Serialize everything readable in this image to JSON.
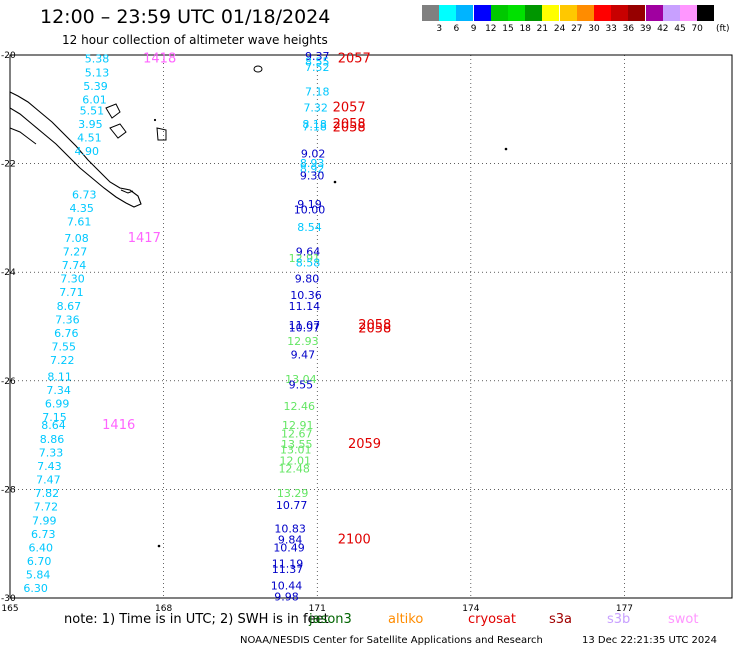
{
  "title": "12:00 – 23:59 UTC 01/18/2024",
  "subtitle": "12 hour collection of altimeter wave heights",
  "colorbar": {
    "colors": [
      "#808080",
      "#00ffff",
      "#00b4ff",
      "#0000ff",
      "#00c800",
      "#00e100",
      "#009600",
      "#ffff00",
      "#ffc800",
      "#ff8c00",
      "#ff0000",
      "#c80000",
      "#960000",
      "#a000a0",
      "#c8a0ff",
      "#ff96ff",
      "#000000"
    ],
    "labels": [
      "3",
      "6",
      "9",
      "12",
      "15",
      "18",
      "21",
      "24",
      "27",
      "30",
      "33",
      "36",
      "39",
      "42",
      "45",
      "70"
    ],
    "unit": "(ft)"
  },
  "axes": {
    "lat_labels": [
      "-20",
      "-22",
      "-24",
      "-26",
      "-28",
      "-30"
    ],
    "lon_labels": [
      "165",
      "168",
      "171",
      "174",
      "177"
    ]
  },
  "annotations": {
    "west_track": [
      {
        "text": "5.38",
        "lat": -20.05,
        "lon": 166.7,
        "color": "#00c8ff"
      },
      {
        "text": "5.13",
        "lat": -20.3,
        "lon": 166.7,
        "color": "#00c8ff"
      },
      {
        "text": "5.39",
        "lat": -20.55,
        "lon": 166.67,
        "color": "#00c8ff"
      },
      {
        "text": "6.01",
        "lat": -20.8,
        "lon": 166.65,
        "color": "#00c8ff"
      },
      {
        "text": "5.51",
        "lat": -21.0,
        "lon": 166.6,
        "color": "#00c8ff"
      },
      {
        "text": "3.95",
        "lat": -21.25,
        "lon": 166.57,
        "color": "#00c8ff"
      },
      {
        "text": "4.51",
        "lat": -21.5,
        "lon": 166.55,
        "color": "#00c8ff"
      },
      {
        "text": "4.90",
        "lat": -21.75,
        "lon": 166.5,
        "color": "#00c8ff"
      },
      {
        "text": "6.73",
        "lat": -22.55,
        "lon": 166.45,
        "color": "#00c8ff"
      },
      {
        "text": "4.35",
        "lat": -22.8,
        "lon": 166.4,
        "color": "#00c8ff"
      },
      {
        "text": "7.61",
        "lat": -23.05,
        "lon": 166.35,
        "color": "#00c8ff"
      },
      {
        "text": "7.08",
        "lat": -23.35,
        "lon": 166.3,
        "color": "#00c8ff"
      },
      {
        "text": "7.27",
        "lat": -23.6,
        "lon": 166.27,
        "color": "#00c8ff"
      },
      {
        "text": "7.74",
        "lat": -23.85,
        "lon": 166.25,
        "color": "#00c8ff"
      },
      {
        "text": "7.30",
        "lat": -24.1,
        "lon": 166.22,
        "color": "#00c8ff"
      },
      {
        "text": "7.71",
        "lat": -24.35,
        "lon": 166.2,
        "color": "#00c8ff"
      },
      {
        "text": "8.67",
        "lat": -24.6,
        "lon": 166.15,
        "color": "#00c8ff"
      },
      {
        "text": "7.36",
        "lat": -24.85,
        "lon": 166.12,
        "color": "#00c8ff"
      },
      {
        "text": "6.76",
        "lat": -25.1,
        "lon": 166.1,
        "color": "#00c8ff"
      },
      {
        "text": "7.55",
        "lat": -25.35,
        "lon": 166.05,
        "color": "#00c8ff"
      },
      {
        "text": "7.22",
        "lat": -25.6,
        "lon": 166.02,
        "color": "#00c8ff"
      },
      {
        "text": "8.11",
        "lat": -25.9,
        "lon": 165.97,
        "color": "#00c8ff"
      },
      {
        "text": "7.34",
        "lat": -26.15,
        "lon": 165.95,
        "color": "#00c8ff"
      },
      {
        "text": "6.99",
        "lat": -26.4,
        "lon": 165.92,
        "color": "#00c8ff"
      },
      {
        "text": "7.15",
        "lat": -26.65,
        "lon": 165.87,
        "color": "#00c8ff"
      },
      {
        "text": "8.64",
        "lat": -26.8,
        "lon": 165.85,
        "color": "#00c8ff"
      },
      {
        "text": "8.86",
        "lat": -27.05,
        "lon": 165.82,
        "color": "#00c8ff"
      },
      {
        "text": "7.33",
        "lat": -27.3,
        "lon": 165.8,
        "color": "#00c8ff"
      },
      {
        "text": "7.43",
        "lat": -27.55,
        "lon": 165.77,
        "color": "#00c8ff"
      },
      {
        "text": "7.47",
        "lat": -27.8,
        "lon": 165.75,
        "color": "#00c8ff"
      },
      {
        "text": "7.82",
        "lat": -28.05,
        "lon": 165.72,
        "color": "#00c8ff"
      },
      {
        "text": "7.72",
        "lat": -28.3,
        "lon": 165.7,
        "color": "#00c8ff"
      },
      {
        "text": "7.99",
        "lat": -28.55,
        "lon": 165.67,
        "color": "#00c8ff"
      },
      {
        "text": "6.73",
        "lat": -28.8,
        "lon": 165.65,
        "color": "#00c8ff"
      },
      {
        "text": "6.40",
        "lat": -29.05,
        "lon": 165.6,
        "color": "#00c8ff"
      },
      {
        "text": "6.70",
        "lat": -29.3,
        "lon": 165.57,
        "color": "#00c8ff"
      },
      {
        "text": "5.84",
        "lat": -29.55,
        "lon": 165.55,
        "color": "#00c8ff"
      },
      {
        "text": "6.30",
        "lat": -29.8,
        "lon": 165.5,
        "color": "#00c8ff"
      }
    ],
    "east_track": [
      {
        "text": "9.37",
        "lat": -20.0,
        "lon": 171.0,
        "color": "#0000c8"
      },
      {
        "text": "8.55",
        "lat": -20.1,
        "lon": 171.0,
        "color": "#00c8ff"
      },
      {
        "text": "7.52",
        "lat": -20.2,
        "lon": 171.0,
        "color": "#00c8ff"
      },
      {
        "text": "7.18",
        "lat": -20.65,
        "lon": 171.0,
        "color": "#00c8ff"
      },
      {
        "text": "7.32",
        "lat": -20.95,
        "lon": 170.97,
        "color": "#00c8ff"
      },
      {
        "text": "8.18",
        "lat": -21.25,
        "lon": 170.95,
        "color": "#00c8ff"
      },
      {
        "text": "7.18",
        "lat": -21.3,
        "lon": 170.95,
        "color": "#00c8ff"
      },
      {
        "text": "9.02",
        "lat": -21.8,
        "lon": 170.92,
        "color": "#0000c8"
      },
      {
        "text": "8.93",
        "lat": -21.97,
        "lon": 170.9,
        "color": "#00c8ff"
      },
      {
        "text": "8.92",
        "lat": -22.07,
        "lon": 170.9,
        "color": "#00c8ff"
      },
      {
        "text": "9.30",
        "lat": -22.2,
        "lon": 170.9,
        "color": "#0000c8"
      },
      {
        "text": "9.19",
        "lat": -22.73,
        "lon": 170.85,
        "color": "#0000c8"
      },
      {
        "text": "10.00",
        "lat": -22.83,
        "lon": 170.85,
        "color": "#0000c8"
      },
      {
        "text": "8.54",
        "lat": -23.15,
        "lon": 170.85,
        "color": "#00c8ff"
      },
      {
        "text": "9.64",
        "lat": -23.6,
        "lon": 170.82,
        "color": "#0000c8"
      },
      {
        "text": "12.91",
        "lat": -23.72,
        "lon": 170.75,
        "color": "#64e664"
      },
      {
        "text": "8.58",
        "lat": -23.8,
        "lon": 170.82,
        "color": "#00c8ff"
      },
      {
        "text": "9.80",
        "lat": -24.1,
        "lon": 170.8,
        "color": "#0000c8"
      },
      {
        "text": "10.36",
        "lat": -24.4,
        "lon": 170.78,
        "color": "#0000c8"
      },
      {
        "text": "11.14",
        "lat": -24.6,
        "lon": 170.75,
        "color": "#0000c8"
      },
      {
        "text": "11.07",
        "lat": -24.95,
        "lon": 170.75,
        "color": "#0000c8"
      },
      {
        "text": "10.97",
        "lat": -25.0,
        "lon": 170.75,
        "color": "#0000c8"
      },
      {
        "text": "12.93",
        "lat": -25.25,
        "lon": 170.72,
        "color": "#64e664"
      },
      {
        "text": "9.47",
        "lat": -25.5,
        "lon": 170.72,
        "color": "#0000c8"
      },
      {
        "text": "13.04",
        "lat": -25.95,
        "lon": 170.68,
        "color": "#64e664"
      },
      {
        "text": "9.55",
        "lat": -26.05,
        "lon": 170.68,
        "color": "#0000c8"
      },
      {
        "text": "12.46",
        "lat": -26.45,
        "lon": 170.65,
        "color": "#64e664"
      },
      {
        "text": "12.91",
        "lat": -26.8,
        "lon": 170.62,
        "color": "#64e664"
      },
      {
        "text": "12.67",
        "lat": -26.95,
        "lon": 170.6,
        "color": "#64e664"
      },
      {
        "text": "13.55",
        "lat": -27.15,
        "lon": 170.6,
        "color": "#64e664"
      },
      {
        "text": "13.01",
        "lat": -27.25,
        "lon": 170.58,
        "color": "#64e664"
      },
      {
        "text": "12.01",
        "lat": -27.45,
        "lon": 170.57,
        "color": "#64e664"
      },
      {
        "text": "12.48",
        "lat": -27.6,
        "lon": 170.55,
        "color": "#64e664"
      },
      {
        "text": "13.29",
        "lat": -28.05,
        "lon": 170.52,
        "color": "#64e664"
      },
      {
        "text": "10.77",
        "lat": -28.27,
        "lon": 170.5,
        "color": "#0000c8"
      },
      {
        "text": "10.83",
        "lat": -28.7,
        "lon": 170.47,
        "color": "#0000c8"
      },
      {
        "text": "9.84",
        "lat": -28.9,
        "lon": 170.47,
        "color": "#0000c8"
      },
      {
        "text": "10.49",
        "lat": -29.05,
        "lon": 170.45,
        "color": "#0000c8"
      },
      {
        "text": "11.19",
        "lat": -29.35,
        "lon": 170.42,
        "color": "#0000c8"
      },
      {
        "text": "11.37",
        "lat": -29.45,
        "lon": 170.42,
        "color": "#0000c8"
      },
      {
        "text": "10.44",
        "lat": -29.75,
        "lon": 170.4,
        "color": "#0000c8"
      },
      {
        "text": "9.98",
        "lat": -29.95,
        "lon": 170.4,
        "color": "#0000c8"
      }
    ],
    "times": [
      {
        "text": "1418",
        "lat": -20.05,
        "lon": 167.6,
        "color": "#ff64ff"
      },
      {
        "text": "2057",
        "lat": -20.05,
        "lon": 171.4,
        "color": "#e00000"
      },
      {
        "text": "2057",
        "lat": -20.95,
        "lon": 171.3,
        "color": "#e00000"
      },
      {
        "text": "2058",
        "lat": -21.25,
        "lon": 171.3,
        "color": "#e00000"
      },
      {
        "text": "2058",
        "lat": -21.32,
        "lon": 171.3,
        "color": "#e00000"
      },
      {
        "text": "1417",
        "lat": -23.35,
        "lon": 167.3,
        "color": "#ff64ff"
      },
      {
        "text": "2058",
        "lat": -24.95,
        "lon": 171.8,
        "color": "#e00000"
      },
      {
        "text": "2058",
        "lat": -25.02,
        "lon": 171.8,
        "color": "#e00000"
      },
      {
        "text": "1416",
        "lat": -26.8,
        "lon": 166.8,
        "color": "#ff64ff"
      },
      {
        "text": "2059",
        "lat": -27.15,
        "lon": 171.6,
        "color": "#e00000"
      },
      {
        "text": "2100",
        "lat": -28.9,
        "lon": 171.4,
        "color": "#e00000"
      }
    ]
  },
  "notes": {
    "note_text": "note:  1) Time is in UTC; 2) SWH is in feet",
    "sats": [
      {
        "text": "jason3",
        "color": "#006400",
        "left": 309
      },
      {
        "text": "altiko",
        "color": "#ff8c00",
        "left": 388
      },
      {
        "text": "cryosat",
        "color": "#e00000",
        "left": 468
      },
      {
        "text": "s3a",
        "color": "#a00000",
        "left": 549
      },
      {
        "text": "s3b",
        "color": "#c8a0ff",
        "left": 607
      },
      {
        "text": "swot",
        "color": "#ff96ff",
        "left": 668
      }
    ]
  },
  "footer": "NOAA/NESDIS Center for Satellite Applications and Research",
  "footer_time": "13 Dec 22:21:35 UTC 2024"
}
